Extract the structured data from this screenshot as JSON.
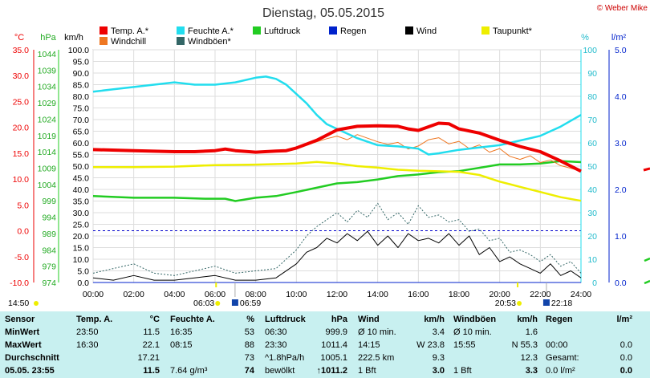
{
  "title": "Dienstag, 05.05.2015",
  "credit": "© Weber Mike",
  "axis_units": {
    "temp": "°C",
    "pressure": "hPa",
    "wind": "km/h",
    "humidity": "%",
    "rain": "l/m²"
  },
  "temp_ticks": [
    "35.0",
    "30.0",
    "25.0",
    "20.0",
    "15.0",
    "10.0",
    "5.0",
    "0.0",
    "-5.0",
    "-10.0"
  ],
  "pressure_ticks": [
    "1044",
    "1039",
    "1034",
    "1029",
    "1024",
    "1019",
    "1014",
    "1009",
    "1004",
    "999",
    "994",
    "989",
    "984",
    "979",
    "974"
  ],
  "wind_ticks": [
    "100.0",
    "95.0",
    "90.0",
    "85.0",
    "80.0",
    "75.0",
    "70.0",
    "65.0",
    "60.0",
    "55.0",
    "50.0",
    "45.0",
    "40.0",
    "35.0",
    "30.0",
    "25.0",
    "20.0",
    "15.0",
    "10.0",
    "5.0",
    "0.0"
  ],
  "humidity_ticks": [
    "100",
    "90",
    "80",
    "70",
    "60",
    "50",
    "40",
    "30",
    "20",
    "10",
    "0"
  ],
  "rain_ticks": [
    "5.0",
    "4.0",
    "3.0",
    "2.0",
    "1.0",
    "0.0"
  ],
  "time_ticks": [
    "00:00",
    "02:00",
    "04:00",
    "06:00",
    "08:00",
    "10:00",
    "12:00",
    "14:00",
    "16:00",
    "18:00",
    "20:00",
    "22:00",
    "24:00"
  ],
  "astro": {
    "moonrise": "14:50",
    "sunrise": "06:03",
    "civil_sunrise": "06:59",
    "sunset": "20:53",
    "civil_sunset": "22:18"
  },
  "colors": {
    "temp": "#ee0000",
    "windchill": "#ee7722",
    "humidity": "#22ddee",
    "windgust": "#336666",
    "pressure": "#22cc22",
    "rain": "#0022cc",
    "wind": "#000000",
    "dewpoint": "#eeee00",
    "zero": "#0000cc",
    "panel": "#c8f0f0"
  },
  "legend": [
    {
      "label": "Temp. A.*",
      "color": "#ee0000",
      "col": 0,
      "row": 0
    },
    {
      "label": "Windchill",
      "color": "#ee7722",
      "col": 0,
      "row": 1
    },
    {
      "label": "Feuchte A.*",
      "color": "#22ddee",
      "col": 1,
      "row": 0
    },
    {
      "label": "Windböen*",
      "color": "#336666",
      "col": 1,
      "row": 1
    },
    {
      "label": "Luftdruck",
      "color": "#22cc22",
      "col": 2,
      "row": 0
    },
    {
      "label": "Regen",
      "color": "#0022cc",
      "col": 3,
      "row": 0
    },
    {
      "label": "Wind",
      "color": "#000000",
      "col": 4,
      "row": 0
    },
    {
      "label": "Taupunkt*",
      "color": "#eeee00",
      "col": 5,
      "row": 0
    }
  ],
  "chart_data": {
    "type": "line",
    "title": "Dienstag, 05.05.2015",
    "x_unit": "hour of day",
    "xlim": [
      0,
      24
    ],
    "series": [
      {
        "name": "Temp. A.*",
        "unit": "°C",
        "axis": "temp",
        "ylim": [
          -10,
          35
        ],
        "x": [
          0,
          2,
          4,
          5,
          6,
          6.5,
          7,
          8,
          9,
          9.5,
          10,
          11,
          12,
          13,
          14,
          15,
          15.5,
          16,
          16.5,
          17,
          17.5,
          18,
          19,
          20,
          21,
          22,
          23,
          24
        ],
        "values": [
          15.7,
          15.5,
          15.3,
          15.3,
          15.5,
          15.8,
          15.5,
          15.2,
          15.4,
          15.5,
          16.0,
          17.5,
          19.5,
          20.2,
          20.3,
          20.2,
          19.7,
          19.4,
          20.1,
          20.8,
          20.7,
          19.7,
          18.9,
          17.5,
          16.3,
          15.3,
          13.5,
          11.5
        ]
      },
      {
        "name": "Windchill",
        "unit": "°C",
        "axis": "temp",
        "ylim": [
          -10,
          35
        ],
        "x": [
          10.5,
          11,
          11.5,
          12,
          12.5,
          13,
          13.5,
          14,
          14.5,
          15,
          15.5,
          16,
          16.5,
          17,
          17.5,
          18,
          18.5,
          19,
          19.5,
          20,
          20.5,
          21,
          21.5,
          22,
          22.5,
          23,
          23.5,
          24
        ],
        "values": [
          16.5,
          17.2,
          17.8,
          18.3,
          17.6,
          18.6,
          17.9,
          17.2,
          16.7,
          17.1,
          15.8,
          16.4,
          17.6,
          18.0,
          16.8,
          17.3,
          15.9,
          16.6,
          15.2,
          15.9,
          14.4,
          13.8,
          14.5,
          13.2,
          13.7,
          12.6,
          12.1,
          11.5
        ]
      },
      {
        "name": "Feuchte A.*",
        "unit": "%",
        "axis": "humidity",
        "ylim": [
          0,
          100
        ],
        "x": [
          0,
          1,
          2,
          3,
          4,
          5,
          6,
          7,
          8,
          8.5,
          9,
          9.5,
          10,
          10.5,
          11,
          11.5,
          12,
          13,
          14,
          15,
          15.5,
          16,
          16.5,
          17,
          18,
          19,
          20,
          21,
          22,
          23,
          24
        ],
        "values": [
          82,
          83,
          84,
          85,
          86,
          85,
          85,
          86,
          88,
          88.5,
          87.5,
          85,
          81,
          77,
          72,
          68,
          66,
          62,
          59,
          58.5,
          58,
          57.5,
          55,
          55.5,
          57,
          58,
          59,
          61,
          63,
          67,
          72
        ]
      },
      {
        "name": "Luftdruck",
        "unit": "hPa",
        "axis": "pressure",
        "ylim": [
          974,
          1044
        ],
        "x": [
          0,
          2,
          4,
          5.5,
          6.5,
          7,
          8,
          9,
          10,
          11,
          12,
          13,
          14,
          15,
          16,
          17,
          18,
          19,
          20,
          21,
          22,
          23,
          24
        ],
        "values": [
          1000.0,
          999.5,
          999.5,
          999.2,
          999.2,
          998.5,
          999.5,
          1000.0,
          1001.2,
          1002.5,
          1003.8,
          1004.2,
          1005.0,
          1006.0,
          1006.5,
          1007.2,
          1007.5,
          1008.5,
          1009.5,
          1009.5,
          1009.8,
          1010.5,
          1010.2
        ]
      },
      {
        "name": "Taupunkt*",
        "unit": "°C",
        "axis": "temp",
        "ylim": [
          -10,
          35
        ],
        "x": [
          0,
          2,
          4,
          6,
          8,
          10,
          11,
          12,
          13,
          14,
          15,
          16,
          17,
          18,
          19,
          20,
          21,
          22,
          23,
          24
        ],
        "values": [
          12.3,
          12.3,
          12.4,
          12.7,
          12.8,
          13.0,
          13.3,
          13.0,
          12.5,
          12.2,
          11.8,
          11.6,
          11.5,
          11.4,
          10.8,
          9.5,
          8.5,
          7.5,
          6.5,
          5.8
        ]
      },
      {
        "name": "Wind",
        "unit": "km/h",
        "axis": "wind",
        "ylim": [
          0,
          100
        ],
        "x": [
          0,
          1,
          2,
          3,
          4,
          5,
          6,
          7,
          8,
          9,
          10,
          10.5,
          11,
          11.5,
          12,
          12.5,
          13,
          13.5,
          14,
          14.5,
          15,
          15.5,
          16,
          16.5,
          17,
          17.5,
          18,
          18.5,
          19,
          19.5,
          20,
          20.5,
          21,
          21.5,
          22,
          22.5,
          23,
          23.5,
          24
        ],
        "values": [
          2,
          1,
          3,
          1,
          1,
          2,
          3,
          1,
          1,
          2,
          8,
          13,
          15,
          19,
          17,
          21,
          18,
          22,
          16,
          20,
          15,
          21,
          18,
          19,
          17,
          21,
          16,
          20,
          12,
          15,
          9,
          11,
          8,
          6,
          4,
          8,
          3,
          5,
          2
        ]
      },
      {
        "name": "Windböen*",
        "unit": "km/h",
        "axis": "wind",
        "ylim": [
          0,
          100
        ],
        "x": [
          0,
          1,
          2,
          3,
          4,
          5,
          6,
          7,
          8,
          9,
          10,
          10.5,
          11,
          11.5,
          12,
          12.5,
          13,
          13.5,
          14,
          14.5,
          15,
          15.5,
          16,
          16.5,
          17,
          17.5,
          18,
          18.5,
          19,
          19.5,
          20,
          20.5,
          21,
          21.5,
          22,
          22.5,
          23,
          23.5,
          24
        ],
        "values": [
          4,
          6,
          8,
          4,
          3,
          5,
          7,
          4,
          5,
          6,
          14,
          20,
          24,
          27,
          30,
          26,
          31,
          28,
          34,
          27,
          30,
          25,
          33,
          28,
          29,
          26,
          27,
          22,
          23,
          18,
          19,
          13,
          14,
          12,
          9,
          12,
          7,
          9,
          4
        ]
      },
      {
        "name": "Regen",
        "unit": "l/m²",
        "axis": "rain",
        "ylim": [
          0,
          5
        ],
        "x": [
          0,
          24
        ],
        "values": [
          0,
          0
        ]
      }
    ]
  },
  "stats": {
    "headers": [
      {
        "label": "Sensor",
        "unit": ""
      },
      {
        "label": "Temp. A.",
        "unit": "°C"
      },
      {
        "label": "Feuchte A.",
        "unit": "%"
      },
      {
        "label": "Luftdruck",
        "unit": "hPa"
      },
      {
        "label": "Wind",
        "unit": "km/h"
      },
      {
        "label": "Windböen",
        "unit": "km/h"
      },
      {
        "label": "Regen",
        "unit": "l/m²"
      }
    ],
    "rows": [
      {
        "label": "MinWert",
        "cells": [
          {
            "a": "23:50",
            "b": "11.5"
          },
          {
            "a": "16:35",
            "b": "53"
          },
          {
            "a": "06:30",
            "b": "999.9"
          },
          {
            "a": "Ø 10 min.",
            "b": "3.4"
          },
          {
            "a": "Ø 10 min.",
            "b": "1.6"
          },
          {
            "a": "",
            "b": ""
          }
        ]
      },
      {
        "label": "MaxWert",
        "cells": [
          {
            "a": "16:30",
            "b": "22.1"
          },
          {
            "a": "08:15",
            "b": "88"
          },
          {
            "a": "23:30",
            "b": "1011.4"
          },
          {
            "a": "14:15",
            "b": "W 23.8"
          },
          {
            "a": "15:55",
            "b": "N 55.3"
          },
          {
            "a": "00:00",
            "b": "0.0"
          }
        ]
      },
      {
        "label": "Durchschnitt",
        "cells": [
          {
            "a": "",
            "b": "17.21"
          },
          {
            "a": "",
            "b": "73"
          },
          {
            "a": "^1.8hPa/h",
            "b": "1005.1"
          },
          {
            "a": "222.5 km",
            "b": "9.3"
          },
          {
            "a": "",
            "b": "12.3"
          },
          {
            "a": "Gesamt:",
            "b": "0.0"
          }
        ]
      },
      {
        "label": "05.05. 23:55",
        "cells": [
          {
            "a": "",
            "b": "11.5"
          },
          {
            "a": "7.64 g/m³",
            "b": "74"
          },
          {
            "a": "bewölkt",
            "b": "↑1011.2"
          },
          {
            "a": "1 Bft",
            "b": "3.0"
          },
          {
            "a": "1 Bft",
            "b": "3.3"
          },
          {
            "a": "0.0 l/m²",
            "b": "0.0"
          }
        ]
      }
    ]
  }
}
